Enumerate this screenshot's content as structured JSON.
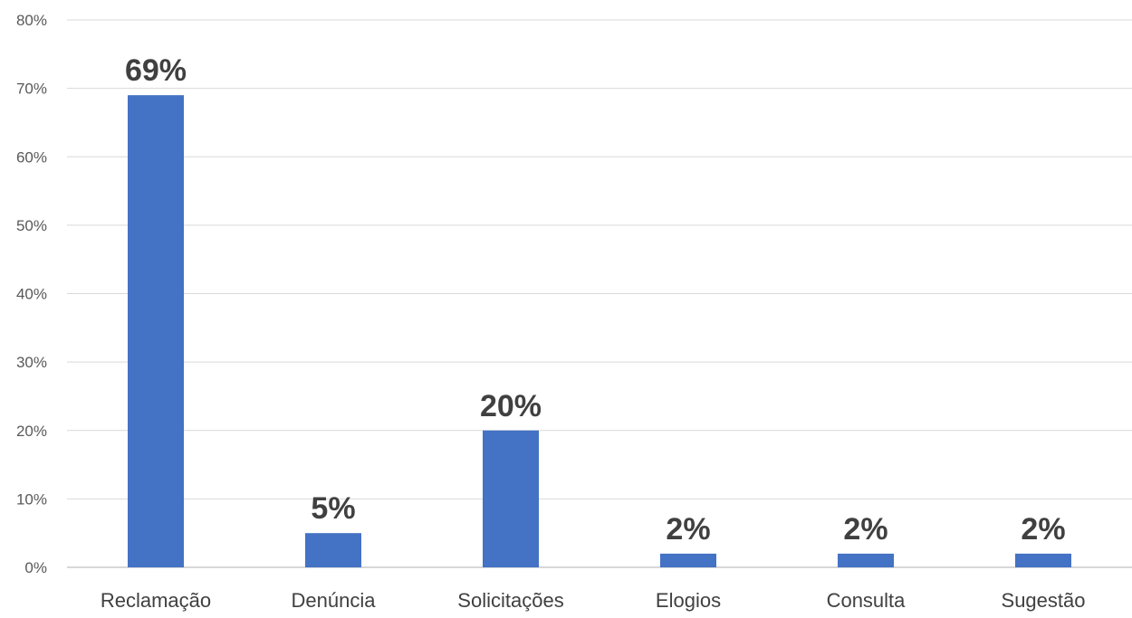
{
  "chart_data": {
    "type": "bar",
    "title": "",
    "xlabel": "",
    "ylabel": "",
    "categories": [
      "Reclamação",
      "Denúncia",
      "Solicitações",
      "Elogios",
      "Consulta",
      "Sugestão"
    ],
    "values": [
      69,
      5,
      20,
      2,
      2,
      2
    ],
    "data_labels": [
      "69%",
      "5%",
      "20%",
      "2%",
      "2%",
      "2%"
    ],
    "ylim": [
      0,
      80
    ],
    "yticks": [
      0,
      10,
      20,
      30,
      40,
      50,
      60,
      70,
      80
    ],
    "ytick_labels": [
      "0%",
      "10%",
      "20%",
      "30%",
      "40%",
      "50%",
      "60%",
      "70%",
      "80%"
    ],
    "grid": true,
    "legend": "none",
    "colors": {
      "bar": "#4472c4",
      "grid": "#d9d9d9",
      "text": "#404040"
    }
  }
}
